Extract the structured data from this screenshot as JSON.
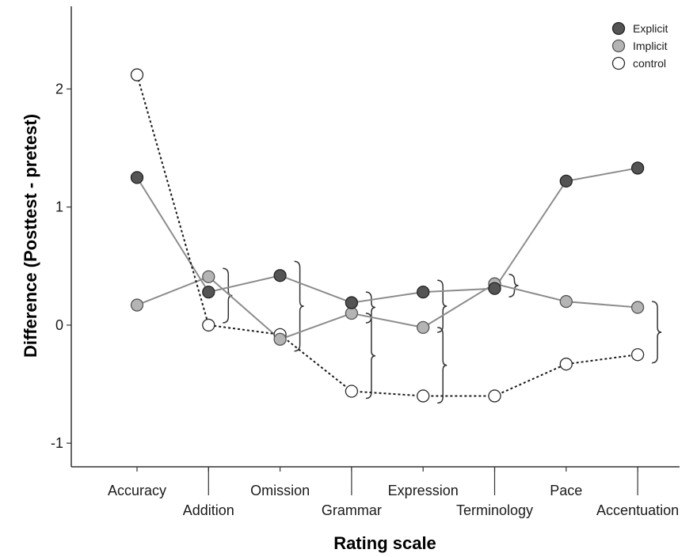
{
  "chart_data": {
    "type": "line",
    "title": "",
    "xlabel": "Rating scale",
    "ylabel": "Difference (Posttest - pretest)",
    "categories": [
      "Accuracy",
      "Addition",
      "Omission",
      "Grammar",
      "Expression",
      "Terminology",
      "Pace",
      "Accentuation"
    ],
    "yticks": [
      "-1",
      "0",
      "1",
      "2"
    ],
    "ylim": [
      -1.2,
      2.7
    ],
    "legend_position": "top-right",
    "series": [
      {
        "name": "Explicit",
        "values": [
          1.25,
          0.28,
          0.42,
          0.19,
          0.28,
          0.31,
          1.22,
          1.33
        ],
        "marker_fill": "#545454",
        "marker_stroke": "#222222",
        "line_color": "#8c8c8c",
        "line_style": "solid"
      },
      {
        "name": "Implicit",
        "values": [
          0.17,
          0.41,
          -0.12,
          0.1,
          -0.02,
          0.35,
          0.2,
          0.15
        ],
        "marker_fill": "#b4b4b4",
        "marker_stroke": "#555555",
        "line_color": "#8c8c8c",
        "line_style": "solid"
      },
      {
        "name": "control",
        "values": [
          2.12,
          0.0,
          -0.08,
          -0.56,
          -0.6,
          -0.6,
          -0.33,
          -0.25
        ],
        "marker_fill": "#ffffff",
        "marker_stroke": "#2a2a2a",
        "line_color": "#1a1a1a",
        "line_style": "dotted"
      }
    ],
    "brackets": [
      {
        "category": "Addition",
        "from": 0.48,
        "to": 0.02
      },
      {
        "category": "Omission",
        "from": 0.54,
        "to": -0.22
      },
      {
        "category": "Grammar",
        "from": 0.28,
        "to": 0.02
      },
      {
        "category": "Grammar",
        "from": 0.1,
        "to": -0.62
      },
      {
        "category": "Expression",
        "from": 0.38,
        "to": -0.06
      },
      {
        "category": "Expression",
        "from": -0.02,
        "to": -0.66
      },
      {
        "category": "Terminology",
        "from": 0.43,
        "to": 0.24
      },
      {
        "category": "Accentuation",
        "from": 0.2,
        "to": -0.32
      }
    ]
  }
}
